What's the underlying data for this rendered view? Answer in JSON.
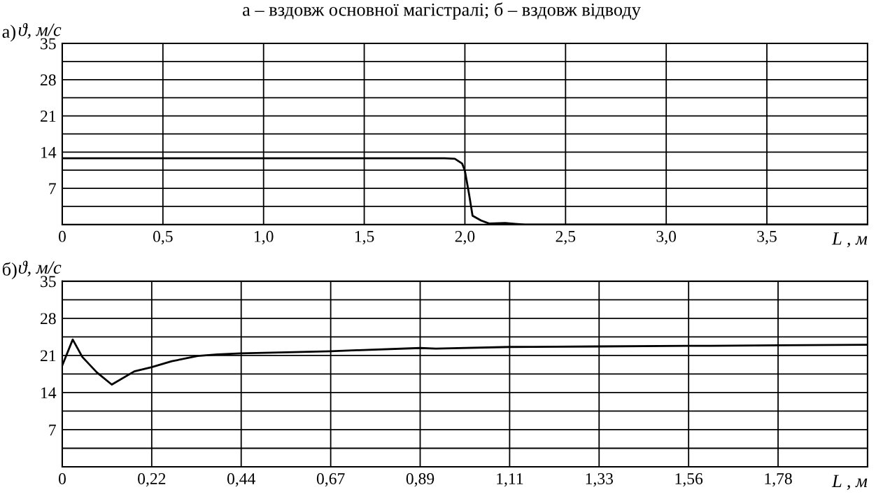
{
  "chart_data": [
    {
      "type": "line",
      "title": "а – вздовж основної магістралі; б – вздовж відводу",
      "xlabel": "L , м",
      "ylabel": "ϑ, м/с",
      "annotations": [
        "а)"
      ],
      "grid": true,
      "legend": false,
      "marker": "none",
      "line_style": "solid",
      "xlim": [
        0,
        4.0
      ],
      "ylim": [
        0,
        35
      ],
      "xticks": [
        {
          "value": 0,
          "label": "0"
        },
        {
          "value": 0.5,
          "label": "0,5"
        },
        {
          "value": 1.0,
          "label": "1,0"
        },
        {
          "value": 1.5,
          "label": "1,5"
        },
        {
          "value": 2.0,
          "label": "2,0"
        },
        {
          "value": 2.5,
          "label": "2,5"
        },
        {
          "value": 3.0,
          "label": "3,0"
        },
        {
          "value": 3.5,
          "label": "3,5"
        }
      ],
      "yticks": [
        {
          "value": 0,
          "label": null
        },
        {
          "value": 3.5,
          "label": null
        },
        7,
        {
          "value": 10.5,
          "label": null
        },
        14,
        {
          "value": 17.5,
          "label": null
        },
        21,
        {
          "value": 24.5,
          "label": null
        },
        28,
        {
          "value": 31.5,
          "label": null
        },
        35
      ],
      "series": [
        {
          "color": "#000000",
          "x": [
            0,
            1.0,
            1.9,
            1.95,
            1.986,
            2.0,
            2.021,
            2.038,
            2.08,
            2.12,
            2.2,
            2.26,
            2.3,
            4.0
          ],
          "values": [
            12.8,
            12.8,
            12.8,
            12.7,
            11.8,
            10.4,
            5.8,
            1.7,
            0.8,
            0.2,
            0.3,
            0.1,
            0,
            0
          ]
        }
      ]
    },
    {
      "type": "line",
      "xlabel": "L , м",
      "ylabel": "ϑ, м/с",
      "annotations": [
        "б)"
      ],
      "grid": true,
      "legend": false,
      "marker": "none",
      "line_style": "solid",
      "xlim": [
        0,
        2.0
      ],
      "ylim": [
        0,
        35
      ],
      "xticks": [
        {
          "value": 0,
          "label": "0"
        },
        {
          "value": 0.2222,
          "label": "0,22"
        },
        {
          "value": 0.4444,
          "label": "0,44"
        },
        {
          "value": 0.6667,
          "label": "0,67"
        },
        {
          "value": 0.8889,
          "label": "0,89"
        },
        {
          "value": 1.1111,
          "label": "1,11"
        },
        {
          "value": 1.3333,
          "label": "1,33"
        },
        {
          "value": 1.5556,
          "label": "1,56"
        },
        {
          "value": 1.7778,
          "label": "1,78"
        }
      ],
      "yticks": [
        {
          "value": 0,
          "label": null
        },
        {
          "value": 3.5,
          "label": null
        },
        7,
        {
          "value": 10.5,
          "label": null
        },
        14,
        {
          "value": 17.5,
          "label": null
        },
        21,
        {
          "value": 24.5,
          "label": null
        },
        28,
        {
          "value": 31.5,
          "label": null
        },
        35
      ],
      "series": [
        {
          "color": "#000000",
          "x": [
            0,
            0.026,
            0.05,
            0.086,
            0.123,
            0.179,
            0.222,
            0.272,
            0.336,
            0.386,
            0.444,
            0.558,
            0.667,
            0.737,
            0.889,
            0.928,
            1.111,
            1.333,
            1.556,
            1.778,
            2.0
          ],
          "values": [
            19.1,
            24.0,
            20.7,
            17.8,
            15.5,
            18.0,
            18.8,
            19.9,
            20.9,
            21.2,
            21.4,
            21.6,
            21.8,
            22.0,
            22.4,
            22.3,
            22.6,
            22.7,
            22.8,
            22.9,
            23.0
          ]
        }
      ]
    }
  ]
}
